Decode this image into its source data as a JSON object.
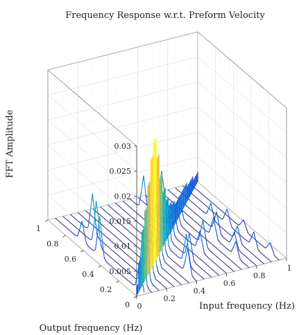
{
  "chart_data": {
    "type": "surface3d",
    "title": "Frequency Response w.r.t. Preform Velocity",
    "xlabel": "Input frequency (Hz)",
    "ylabel": "Output frequency (Hz)",
    "zlabel": "FFT Amplitude",
    "xlim": [
      0,
      1
    ],
    "ylim": [
      0,
      1
    ],
    "zlim": [
      0,
      0.03
    ],
    "xticks": [
      "0",
      "0.2",
      "0.4",
      "0.6",
      "0.8",
      "1"
    ],
    "yticks": [
      "0",
      "0.2",
      "0.4",
      "0.6",
      "0.8",
      "1"
    ],
    "zticks": [
      "0.005",
      "0.01",
      "0.015",
      "0.02",
      "0.025",
      "0.03"
    ],
    "grid": true,
    "colormap": "parula",
    "colors": [
      "#352a87",
      "#0f5cdd",
      "#1481d6",
      "#06a4ca",
      "#2eb7a4",
      "#87bf77",
      "#d1bb59",
      "#fec832",
      "#f9fb0e"
    ],
    "series": [
      {
        "x": 0.05,
        "peaks": [
          [
            0.05,
            0.006
          ],
          [
            0.5,
            0.008
          ],
          [
            0.7,
            0.004
          ]
        ]
      },
      {
        "x": 0.1,
        "peaks": [
          [
            0.1,
            0.011
          ],
          [
            0.62,
            0.009
          ]
        ]
      },
      {
        "x": 0.15,
        "peaks": [
          [
            0.15,
            0.014
          ],
          [
            0.75,
            0.008
          ]
        ]
      },
      {
        "x": 0.2,
        "peaks": [
          [
            0.2,
            0.018
          ]
        ]
      },
      {
        "x": 0.25,
        "peaks": [
          [
            0.25,
            0.022
          ]
        ]
      },
      {
        "x": 0.3,
        "peaks": [
          [
            0.3,
            0.024
          ],
          [
            0.35,
            0.012
          ]
        ]
      },
      {
        "x": 0.35,
        "peaks": [
          [
            0.35,
            0.02
          ]
        ]
      },
      {
        "x": 0.4,
        "peaks": [
          [
            0.4,
            0.015
          ],
          [
            0.1,
            0.005
          ]
        ]
      },
      {
        "x": 0.45,
        "peaks": [
          [
            0.45,
            0.011
          ],
          [
            0.2,
            0.006
          ]
        ]
      },
      {
        "x": 0.5,
        "peaks": [
          [
            0.5,
            0.008
          ],
          [
            0.25,
            0.005
          ]
        ]
      },
      {
        "x": 0.55,
        "peaks": [
          [
            0.55,
            0.006
          ],
          [
            0.85,
            0.007
          ]
        ]
      },
      {
        "x": 0.6,
        "peaks": [
          [
            0.6,
            0.005
          ],
          [
            0.3,
            0.004
          ]
        ]
      },
      {
        "x": 0.65,
        "peaks": [
          [
            0.65,
            0.004
          ],
          [
            0.35,
            0.005
          ]
        ]
      },
      {
        "x": 0.7,
        "peaks": [
          [
            0.7,
            0.004
          ],
          [
            0.9,
            0.006
          ]
        ]
      },
      {
        "x": 0.75,
        "peaks": [
          [
            0.4,
            0.004
          ],
          [
            0.15,
            0.003
          ]
        ]
      },
      {
        "x": 0.8,
        "peaks": [
          [
            0.45,
            0.004
          ],
          [
            0.25,
            0.003
          ]
        ]
      },
      {
        "x": 0.85,
        "peaks": [
          [
            0.3,
            0.003
          ],
          [
            0.6,
            0.003
          ]
        ]
      },
      {
        "x": 0.9,
        "peaks": [
          [
            0.2,
            0.003
          ],
          [
            0.5,
            0.003
          ]
        ]
      },
      {
        "x": 0.95,
        "peaks": [
          [
            0.1,
            0.002
          ],
          [
            0.4,
            0.002
          ]
        ]
      }
    ]
  }
}
